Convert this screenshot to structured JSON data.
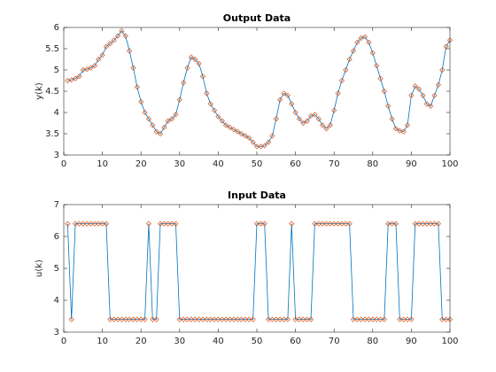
{
  "chart_data": [
    {
      "type": "line",
      "title": "Output Data",
      "ylabel": "y(k)",
      "color": "#0072bd",
      "marker_color": "#d95319",
      "marker": "diamond",
      "x": [
        1,
        2,
        3,
        4,
        5,
        6,
        7,
        8,
        9,
        10,
        11,
        12,
        13,
        14,
        15,
        16,
        17,
        18,
        19,
        20,
        21,
        22,
        23,
        24,
        25,
        26,
        27,
        28,
        29,
        30,
        31,
        32,
        33,
        34,
        35,
        36,
        37,
        38,
        39,
        40,
        41,
        42,
        43,
        44,
        45,
        46,
        47,
        48,
        49,
        50,
        51,
        52,
        53,
        54,
        55,
        56,
        57,
        58,
        59,
        60,
        61,
        62,
        63,
        64,
        65,
        66,
        67,
        68,
        69,
        70,
        71,
        72,
        73,
        74,
        75,
        76,
        77,
        78,
        79,
        80,
        81,
        82,
        83,
        84,
        85,
        86,
        87,
        88,
        89,
        90,
        91,
        92,
        93,
        94,
        95,
        96,
        97,
        98,
        99,
        100
      ],
      "values": [
        4.75,
        4.77,
        4.8,
        4.85,
        5.0,
        5.02,
        5.05,
        5.1,
        5.25,
        5.35,
        5.55,
        5.62,
        5.7,
        5.8,
        5.92,
        5.8,
        5.45,
        5.05,
        4.6,
        4.25,
        4.0,
        3.85,
        3.7,
        3.55,
        3.5,
        3.65,
        3.8,
        3.85,
        3.95,
        4.3,
        4.7,
        5.05,
        5.3,
        5.25,
        5.15,
        4.85,
        4.45,
        4.2,
        4.05,
        3.9,
        3.8,
        3.7,
        3.65,
        3.6,
        3.55,
        3.5,
        3.45,
        3.4,
        3.3,
        3.2,
        3.2,
        3.22,
        3.3,
        3.45,
        3.85,
        4.3,
        4.45,
        4.4,
        4.2,
        4.0,
        3.85,
        3.75,
        3.8,
        3.92,
        3.95,
        3.85,
        3.7,
        3.62,
        3.7,
        4.05,
        4.45,
        4.75,
        5.0,
        5.25,
        5.45,
        5.65,
        5.75,
        5.78,
        5.65,
        5.4,
        5.1,
        4.8,
        4.5,
        4.15,
        3.85,
        3.62,
        3.57,
        3.55,
        3.7,
        4.4,
        4.62,
        4.55,
        4.4,
        4.2,
        4.15,
        4.4,
        4.65,
        5.0,
        5.55,
        5.7
      ],
      "xlim": [
        0,
        100
      ],
      "xticks": [
        0,
        10,
        20,
        30,
        40,
        50,
        60,
        70,
        80,
        90,
        100
      ],
      "ylim": [
        3,
        6
      ],
      "yticks": [
        3,
        3.5,
        4,
        4.5,
        5,
        5.5,
        6
      ]
    },
    {
      "type": "line",
      "title": "Input Data",
      "ylabel": "u(k)",
      "color": "#0072bd",
      "marker_color": "#d95319",
      "marker": "diamond",
      "x": [
        1,
        2,
        3,
        4,
        5,
        6,
        7,
        8,
        9,
        10,
        11,
        12,
        13,
        14,
        15,
        16,
        17,
        18,
        19,
        20,
        21,
        22,
        23,
        24,
        25,
        26,
        27,
        28,
        29,
        30,
        31,
        32,
        33,
        34,
        35,
        36,
        37,
        38,
        39,
        40,
        41,
        42,
        43,
        44,
        45,
        46,
        47,
        48,
        49,
        50,
        51,
        52,
        53,
        54,
        55,
        56,
        57,
        58,
        59,
        60,
        61,
        62,
        63,
        64,
        65,
        66,
        67,
        68,
        69,
        70,
        71,
        72,
        73,
        74,
        75,
        76,
        77,
        78,
        79,
        80,
        81,
        82,
        83,
        84,
        85,
        86,
        87,
        88,
        89,
        90,
        91,
        92,
        93,
        94,
        95,
        96,
        97,
        98,
        99,
        100
      ],
      "values": [
        6.4,
        3.4,
        6.4,
        6.4,
        6.4,
        6.4,
        6.4,
        6.4,
        6.4,
        6.4,
        6.4,
        3.4,
        3.4,
        3.4,
        3.4,
        3.4,
        3.4,
        3.4,
        3.4,
        3.4,
        3.4,
        6.4,
        3.4,
        3.4,
        6.4,
        6.4,
        6.4,
        6.4,
        6.4,
        3.4,
        3.4,
        3.4,
        3.4,
        3.4,
        3.4,
        3.4,
        3.4,
        3.4,
        3.4,
        3.4,
        3.4,
        3.4,
        3.4,
        3.4,
        3.4,
        3.4,
        3.4,
        3.4,
        3.4,
        6.4,
        6.4,
        6.4,
        3.4,
        3.4,
        3.4,
        3.4,
        3.4,
        3.4,
        6.4,
        3.4,
        3.4,
        3.4,
        3.4,
        3.4,
        6.4,
        6.4,
        6.4,
        6.4,
        6.4,
        6.4,
        6.4,
        6.4,
        6.4,
        6.4,
        3.4,
        3.4,
        3.4,
        3.4,
        3.4,
        3.4,
        3.4,
        3.4,
        3.4,
        6.4,
        6.4,
        6.4,
        3.4,
        3.4,
        3.4,
        3.4,
        6.4,
        6.4,
        6.4,
        6.4,
        6.4,
        6.4,
        6.4,
        3.4,
        3.4,
        3.4
      ],
      "xlim": [
        0,
        100
      ],
      "xticks": [
        0,
        10,
        20,
        30,
        40,
        50,
        60,
        70,
        80,
        90,
        100
      ],
      "ylim": [
        3,
        7
      ],
      "yticks": [
        3,
        4,
        5,
        6,
        7
      ]
    }
  ]
}
